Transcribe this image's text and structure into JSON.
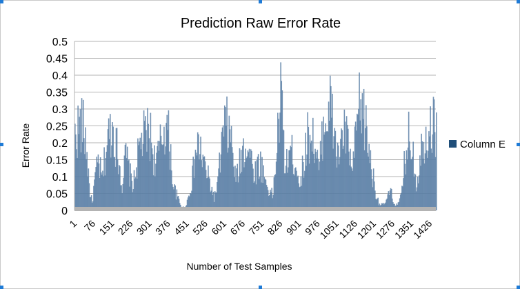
{
  "chart_data": {
    "type": "bar",
    "title": "Prediction Raw Error Rate",
    "xlabel": "Number of Test Samples",
    "ylabel": "Error Rate",
    "ylim": [
      0,
      0.5
    ],
    "yticks": [
      "0",
      "0.05",
      "0.1",
      "0.15",
      "0.2",
      "0.25",
      "0.3",
      "0.35",
      "0.4",
      "0.45",
      "0.5"
    ],
    "x_range": [
      1,
      1450
    ],
    "xticks": [
      "1",
      "76",
      "151",
      "226",
      "301",
      "376",
      "451",
      "526",
      "601",
      "676",
      "751",
      "826",
      "901",
      "976",
      "1051",
      "1126",
      "1201",
      "1276",
      "1351",
      "1426"
    ],
    "grid": true,
    "legend_position": "right",
    "series": [
      {
        "name": "Column E",
        "color": "#5b7fa6",
        "envelope_x": [
          1,
          15,
          30,
          45,
          60,
          70,
          80,
          95,
          110,
          125,
          140,
          151,
          160,
          175,
          190,
          205,
          220,
          235,
          250,
          265,
          280,
          295,
          305,
          320,
          335,
          350,
          365,
          380,
          395,
          410,
          425,
          440,
          455,
          470,
          485,
          500,
          515,
          530,
          545,
          560,
          575,
          590,
          605,
          615,
          630,
          645,
          660,
          675,
          690,
          705,
          720,
          735,
          750,
          765,
          780,
          795,
          810,
          826,
          835,
          845,
          860,
          875,
          890,
          905,
          920,
          935,
          950,
          965,
          980,
          995,
          1010,
          1025,
          1040,
          1055,
          1070,
          1085,
          1100,
          1115,
          1130,
          1145,
          1160,
          1175,
          1190,
          1205,
          1220,
          1235,
          1250,
          1265,
          1280,
          1295,
          1310,
          1325,
          1340,
          1355,
          1370,
          1385,
          1400,
          1415,
          1430,
          1450
        ],
        "envelope_y": [
          0.3,
          0.34,
          0.35,
          0.28,
          0.08,
          0.03,
          0.12,
          0.2,
          0.12,
          0.25,
          0.32,
          0.34,
          0.3,
          0.22,
          0.1,
          0.23,
          0.15,
          0.1,
          0.2,
          0.28,
          0.3,
          0.32,
          0.3,
          0.2,
          0.22,
          0.3,
          0.36,
          0.28,
          0.1,
          0.06,
          0.02,
          0.01,
          0.05,
          0.12,
          0.24,
          0.26,
          0.2,
          0.15,
          0.1,
          0.05,
          0.12,
          0.28,
          0.35,
          0.33,
          0.27,
          0.12,
          0.18,
          0.25,
          0.28,
          0.22,
          0.15,
          0.19,
          0.18,
          0.12,
          0.08,
          0.06,
          0.25,
          0.46,
          0.35,
          0.15,
          0.25,
          0.22,
          0.18,
          0.1,
          0.22,
          0.3,
          0.32,
          0.25,
          0.15,
          0.34,
          0.4,
          0.42,
          0.32,
          0.2,
          0.3,
          0.32,
          0.24,
          0.15,
          0.35,
          0.43,
          0.38,
          0.28,
          0.18,
          0.08,
          0.03,
          0.02,
          0.04,
          0.08,
          0.03,
          0.02,
          0.06,
          0.22,
          0.3,
          0.26,
          0.1,
          0.22,
          0.3,
          0.33,
          0.35,
          0.34
        ]
      }
    ]
  }
}
